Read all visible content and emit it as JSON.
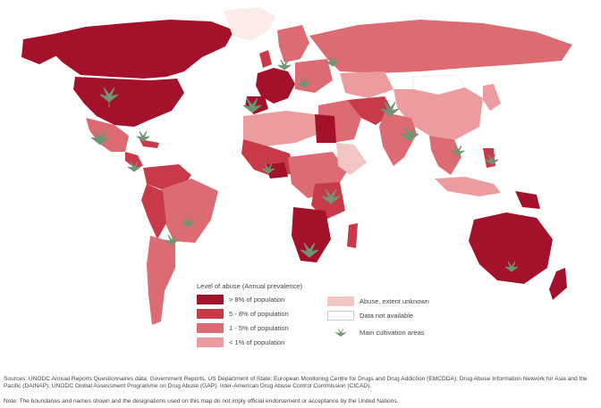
{
  "map": {
    "colors": {
      "ocean": "#ffffff",
      "gt8": "#a3122a",
      "5to8": "#c93a49",
      "1to5": "#dd6b73",
      "lt1": "#ec9c9f",
      "unknown": "#f3c6c4",
      "na": "#fbecea",
      "border": "#ffffff",
      "leaf": "#6f9575"
    },
    "legend": {
      "title": "Level of abuse (Annual prevalence)",
      "items": [
        {
          "label": "> 8% of population",
          "color": "#a3122a"
        },
        {
          "label": "5 - 8% of population",
          "color": "#c93a49"
        },
        {
          "label": "1 - 5% of population",
          "color": "#dd6b73"
        },
        {
          "label": "< 1% of population",
          "color": "#ec9c9f"
        }
      ],
      "other": [
        {
          "label": "Abuse, extent unknown",
          "color": "#f3c6c4"
        },
        {
          "label": "Data not available",
          "color": "#ffffff"
        }
      ],
      "cultivation_label": "Main cultivation areas",
      "cultivation_icon": "cannabis-leaf-icon"
    }
  },
  "footer": {
    "sources": "Sources: UNODC Annual Reports Questionnaires data; Government Reports, US Department of State; European Monitoring Centre for Drugs and Drug Addiction (EMCDDA); Drug Abuse Information Network for Asia and the Pacific (DAINAP); UNODC Global Assessment Programme on Drug Abuse (GAP), Inter-American Drug Abuse Control Commission (CICAD).",
    "note": "Note: The boundaries and names shown and the designations used on this map do not imply official endorsement or acceptance by the United Nations."
  }
}
